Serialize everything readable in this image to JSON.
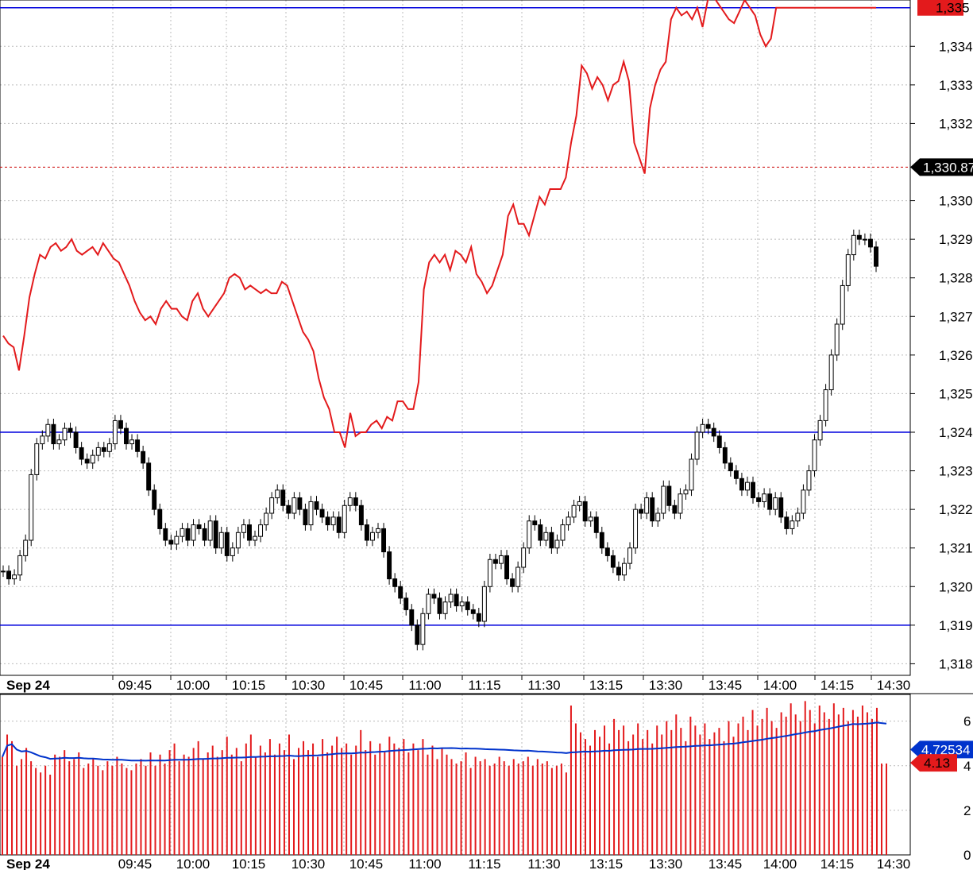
{
  "chart_data": [
    {
      "type": "candlestick",
      "date_label": "Sep 24",
      "x_tick_labels": [
        "09:45",
        "10:00",
        "10:15",
        "10:30",
        "10:45",
        "11:00",
        "11:15",
        "11:30",
        "13:15",
        "13:30",
        "13:45",
        "14:00",
        "14:15",
        "14:30"
      ],
      "y_tick_labels": [
        "1,318",
        "1,319",
        "1,320",
        "1,321",
        "1,322",
        "1,323",
        "1,324",
        "1,325",
        "1,326",
        "1,327",
        "1,328",
        "1,329",
        "1,330",
        "1,332",
        "1,333",
        "1,334"
      ],
      "ylim": [
        1317.7,
        1335.2
      ],
      "horizontal_lines": [
        1335.0,
        1324.0,
        1319.0
      ],
      "reference_line": {
        "value": 1330.87,
        "label": "1,330.87",
        "style": "dashed"
      },
      "current_tag": {
        "label": "1,335",
        "color": "#e31a1c"
      },
      "candles_close": [
        1320.4,
        1320.2,
        1320.3,
        1320.8,
        1321.2,
        1322.9,
        1323.7,
        1323.9,
        1324.2,
        1323.7,
        1323.8,
        1324.1,
        1324.0,
        1323.6,
        1323.3,
        1323.2,
        1323.4,
        1323.6,
        1323.5,
        1323.7,
        1324.3,
        1324.1,
        1323.7,
        1323.8,
        1323.5,
        1323.2,
        1322.5,
        1322.0,
        1321.5,
        1321.2,
        1321.1,
        1321.3,
        1321.5,
        1321.2,
        1321.6,
        1321.5,
        1321.2,
        1321.7,
        1321.0,
        1321.4,
        1320.8,
        1321.0,
        1321.4,
        1321.6,
        1321.2,
        1321.3,
        1321.6,
        1321.9,
        1322.3,
        1322.5,
        1322.1,
        1321.9,
        1322.3,
        1322.0,
        1321.6,
        1322.2,
        1322.0,
        1321.8,
        1321.6,
        1321.8,
        1321.4,
        1322.1,
        1322.3,
        1322.1,
        1321.6,
        1321.2,
        1321.4,
        1321.5,
        1320.9,
        1320.2,
        1320.0,
        1319.7,
        1319.4,
        1319.0,
        1318.5,
        1319.3,
        1319.8,
        1319.7,
        1319.3,
        1319.6,
        1319.8,
        1319.5,
        1319.6,
        1319.4,
        1319.3,
        1319.1,
        1320.0,
        1320.7,
        1320.6,
        1320.8,
        1320.2,
        1320.0,
        1320.5,
        1321.0,
        1321.7,
        1321.6,
        1321.2,
        1321.4,
        1321.0,
        1321.2,
        1321.6,
        1321.8,
        1322.1,
        1322.2,
        1321.7,
        1321.8,
        1321.4,
        1321.0,
        1320.8,
        1320.5,
        1320.3,
        1320.6,
        1321.0,
        1322.0,
        1321.9,
        1322.3,
        1321.7,
        1321.9,
        1322.6,
        1322.1,
        1321.9,
        1322.4,
        1322.5,
        1323.3,
        1324.0,
        1324.2,
        1324.1,
        1323.9,
        1323.6,
        1323.2,
        1323.0,
        1322.8,
        1322.5,
        1322.7,
        1322.3,
        1322.2,
        1322.4,
        1322.0,
        1322.3,
        1321.8,
        1321.5,
        1321.7,
        1321.9,
        1322.5,
        1323.0,
        1323.8,
        1324.3,
        1325.1,
        1326.0,
        1326.8,
        1327.8,
        1328.6,
        1329.1,
        1329.0,
        1329.0,
        1328.8,
        1328.3
      ]
    },
    {
      "type": "line",
      "series": [
        {
          "values": [
            1326.5,
            1326.3,
            1326.2,
            1325.6,
            1326.5,
            1327.5,
            1328.1,
            1328.6,
            1328.5,
            1328.8,
            1328.9,
            1328.7,
            1328.8,
            1329.0,
            1328.7,
            1328.6,
            1328.7,
            1328.8,
            1328.6,
            1328.9,
            1328.7,
            1328.5,
            1328.4,
            1328.1,
            1327.8,
            1327.4,
            1327.1,
            1326.9,
            1327.0,
            1326.8,
            1327.2,
            1327.4,
            1327.2,
            1327.2,
            1327.0,
            1326.9,
            1327.4,
            1327.6,
            1327.2,
            1327.0,
            1327.2,
            1327.4,
            1327.6,
            1328.0,
            1328.1,
            1328.0,
            1327.7,
            1327.8,
            1327.7,
            1327.6,
            1327.7,
            1327.6,
            1327.6,
            1327.9,
            1327.8,
            1327.4,
            1327.0,
            1326.6,
            1326.4,
            1326.1,
            1325.4,
            1324.9,
            1324.6,
            1324.0,
            1324.0,
            1323.6,
            1324.5,
            1323.9,
            1324.0,
            1324.0,
            1324.2,
            1324.3,
            1324.1,
            1324.4,
            1324.3,
            1324.8,
            1324.8,
            1324.6,
            1324.6,
            1325.3,
            1327.7,
            1328.4,
            1328.6,
            1328.4,
            1328.6,
            1328.2,
            1328.7,
            1328.6,
            1328.4,
            1328.8,
            1328.1,
            1327.9,
            1327.6,
            1327.8,
            1328.2,
            1328.6,
            1329.6,
            1329.9,
            1329.4,
            1329.4,
            1329.1,
            1329.6,
            1330.1,
            1329.9,
            1330.3,
            1330.3,
            1330.3,
            1330.6,
            1331.5,
            1332.2,
            1333.5,
            1333.3,
            1332.9,
            1333.2,
            1333.0,
            1332.6,
            1333.0,
            1333.1,
            1333.6,
            1333.1,
            1331.5,
            1331.1,
            1330.7,
            1332.4,
            1333.0,
            1333.4,
            1333.6,
            1334.7,
            1335.0,
            1334.8,
            1334.9,
            1334.7,
            1335.0,
            1334.5,
            1335.2,
            1335.3,
            1335.1,
            1334.9,
            1334.7,
            1334.6,
            1334.9,
            1335.2,
            1335.0,
            1334.8,
            1334.3,
            1334.0,
            1334.2,
            1335.0,
            1335.0,
            1335.0,
            1335.0,
            1335.0,
            1335.0,
            1335.0,
            1335.0,
            1335.0,
            1335.0,
            1335.0,
            1335.0,
            1335.0,
            1335.0,
            1335.0,
            1335.0,
            1335.0,
            1335.0,
            1335.0,
            1335.0
          ]
        }
      ]
    },
    {
      "type": "bar",
      "y_tick_labels": [
        "0",
        "2",
        "4",
        "6"
      ],
      "ylim": [
        0,
        7.2
      ],
      "average_tag": {
        "label": "4.72534",
        "color": "#0033cc"
      },
      "current_tag": {
        "label": "4.13",
        "color": "#e31a1c"
      },
      "values": [
        4.4,
        5.4,
        5.1,
        4.0,
        4.3,
        4.8,
        4.2,
        3.9,
        3.7,
        4.0,
        3.6,
        4.5,
        4.4,
        4.7,
        4.2,
        4.3,
        4.6,
        3.9,
        4.1,
        4.3,
        4.0,
        3.8,
        4.2,
        4.0,
        4.4,
        4.1,
        3.9,
        3.8,
        4.1,
        4.3,
        4.0,
        4.6,
        4.0,
        4.5,
        4.1,
        4.7,
        5.0,
        4.2,
        4.5,
        4.4,
        4.8,
        5.1,
        4.3,
        4.6,
        4.9,
        4.4,
        4.7,
        5.3,
        4.5,
        4.8,
        4.2,
        5.0,
        5.4,
        4.4,
        4.9,
        4.6,
        5.2,
        4.5,
        5.0,
        4.7,
        5.4,
        4.3,
        4.8,
        5.1,
        4.7,
        5.0,
        4.4,
        5.2,
        4.6,
        4.9,
        5.3,
        4.8,
        5.0,
        4.5,
        4.9,
        5.6,
        4.7,
        5.1,
        4.5,
        5.0,
        4.6,
        5.3,
        5.0,
        4.8,
        5.2,
        4.6,
        5.0,
        4.7,
        5.2,
        4.5,
        4.9,
        4.3,
        4.8,
        4.5,
        4.3,
        4.1,
        4.2,
        4.6,
        3.9,
        4.4,
        4.2,
        4.3,
        4.0,
        4.1,
        4.4,
        4.2,
        4.0,
        4.3,
        4.1,
        4.2,
        4.4,
        4.0,
        4.3,
        4.1,
        4.2,
        3.9,
        4.0,
        4.1,
        3.7,
        6.7,
        5.9,
        5.5,
        5.2,
        4.9,
        5.6,
        5.3,
        5.8,
        5.0,
        6.1,
        5.6,
        5.8,
        5.1,
        5.4,
        5.9,
        5.2,
        5.6,
        5.0,
        5.8,
        5.4,
        6.0,
        5.6,
        6.3,
        5.7,
        5.1,
        6.2,
        5.8,
        5.4,
        5.9,
        5.2,
        5.5,
        5.7,
        5.1,
        6.0,
        5.3,
        5.9,
        6.2,
        5.6,
        6.5,
        5.8,
        6.1,
        6.6,
        6.0,
        5.7,
        6.4,
        6.2,
        6.8,
        6.3,
        6.0,
        6.9,
        6.5,
        5.9,
        6.7,
        6.4,
        6.1,
        6.8,
        6.3,
        6.6,
        6.0,
        6.5,
        6.2,
        6.7,
        6.4,
        6.1,
        6.6,
        4.1,
        4.1
      ]
    }
  ]
}
